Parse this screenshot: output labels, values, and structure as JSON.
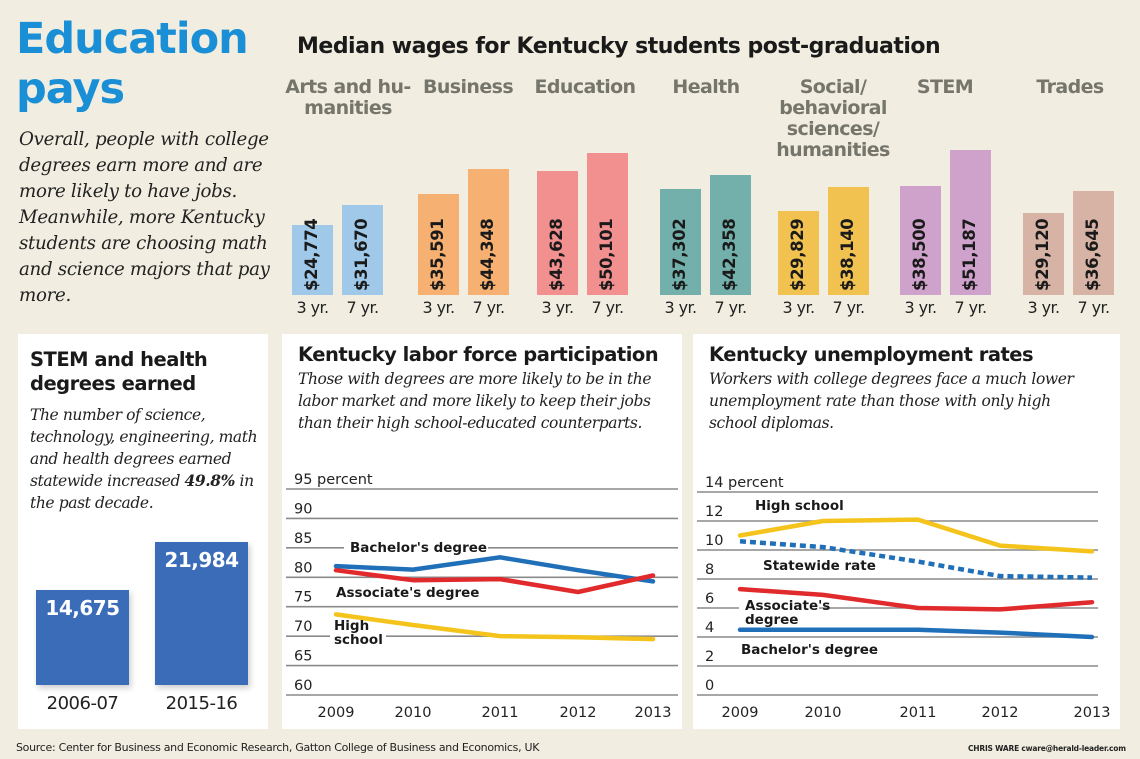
{
  "header": {
    "title_line1": "Education",
    "title_line2": "pays",
    "intro": "Overall, people with college degrees earn more and are more likely to have jobs. Meanwhile, more Kentucky students are choosing math and science majors that pay more."
  },
  "footer": {
    "source": "Source: Center for Business and Economic Research, Gatton College of Business and Economics, UK",
    "credit": "CHRIS WARE cware@herald-leader.com"
  },
  "chart_data": [
    {
      "id": "wages",
      "type": "bar",
      "title": "Median wages for Kentucky students post-graduation",
      "xlabel": "",
      "ylabel": "",
      "sublabels": [
        "3 yr.",
        "7 yr."
      ],
      "categories": [
        {
          "label_lines": [
            "Arts and hu-",
            "manities"
          ],
          "color": "#9fc8e9",
          "values": [
            24774,
            31670
          ],
          "value_labels": [
            "$24,774",
            "$31,670"
          ]
        },
        {
          "label_lines": [
            "Business"
          ],
          "color": "#f5b072",
          "values": [
            35591,
            44348
          ],
          "value_labels": [
            "$35,591",
            "$44,348"
          ]
        },
        {
          "label_lines": [
            "Education"
          ],
          "color": "#f2908f",
          "values": [
            43628,
            50101
          ],
          "value_labels": [
            "$43,628",
            "$50,101"
          ]
        },
        {
          "label_lines": [
            "Health"
          ],
          "color": "#73b0ab",
          "values": [
            37302,
            42358
          ],
          "value_labels": [
            "$37,302",
            "$42,358"
          ]
        },
        {
          "label_lines": [
            "Social/",
            "behavioral",
            "sciences/",
            "humanities"
          ],
          "color": "#f1c24f",
          "values": [
            29829,
            38140
          ],
          "value_labels": [
            "$29,829",
            "$38,140"
          ]
        },
        {
          "label_lines": [
            "STEM"
          ],
          "color": "#cfa2cc",
          "values": [
            38500,
            51187
          ],
          "value_labels": [
            "$38,500",
            "$51,187"
          ]
        },
        {
          "label_lines": [
            "Trades"
          ],
          "color": "#d7b3a5",
          "values": [
            29120,
            36645
          ],
          "value_labels": [
            "$29,120",
            "$36,645"
          ]
        }
      ],
      "ylim": [
        0,
        52000
      ],
      "grid": false
    },
    {
      "id": "stem_degrees",
      "type": "bar",
      "title": "STEM and health degrees earned",
      "description_pre": "The number of science, technology, engineering, math and health degrees earned statewide increased ",
      "description_bold": "49.8%",
      "description_post": " in the past decade.",
      "categories": [
        "2006-07",
        "2015-16"
      ],
      "values": [
        14675,
        21984
      ],
      "value_labels": [
        "14,675",
        "21,984"
      ],
      "color": "#3a6cb8",
      "ylim": [
        0,
        23000
      ],
      "grid": false
    },
    {
      "id": "labor",
      "type": "line",
      "title": "Kentucky labor force participation",
      "description": "Those with degrees are more likely to be in the labor market and more likely to keep their jobs than their high school-educated counterparts.",
      "x": [
        "2009",
        "2010",
        "2011",
        "2012",
        "2013"
      ],
      "ylim": [
        60,
        95
      ],
      "yticks": [
        95,
        90,
        85,
        80,
        75,
        70,
        65,
        60
      ],
      "ytick_labels": [
        "95 percent",
        "90",
        "85",
        "80",
        "75",
        "70",
        "65",
        "60"
      ],
      "grid": true,
      "series": [
        {
          "name": "Bachelor's degree",
          "color": "#1f6fb9",
          "dashed": false,
          "values": [
            81.9,
            81.3,
            83.4,
            81.2,
            79.3
          ]
        },
        {
          "name": "Associate's degree",
          "color": "#e02a2c",
          "dashed": false,
          "values": [
            81.2,
            79.5,
            79.7,
            77.5,
            80.3
          ]
        },
        {
          "name": "High school",
          "label_lines": [
            "High",
            "school"
          ],
          "color": "#f4c41c",
          "dashed": false,
          "values": [
            73.7,
            71.9,
            70.0,
            69.8,
            69.5
          ]
        }
      ]
    },
    {
      "id": "unemployment",
      "type": "line",
      "title": "Kentucky unemployment rates",
      "description": "Workers with college degrees face a much lower unemployment rate than those with only high school diplomas.",
      "x": [
        "2009",
        "2010",
        "2011",
        "2012",
        "2013"
      ],
      "ylim": [
        0,
        14
      ],
      "yticks": [
        14,
        12,
        10,
        8,
        6,
        4,
        2,
        0
      ],
      "ytick_labels": [
        "14 percent",
        "12",
        "10",
        "8",
        "6",
        "4",
        "2",
        "0"
      ],
      "grid": true,
      "series": [
        {
          "name": "High school",
          "color": "#f4c41c",
          "dashed": false,
          "values": [
            11.0,
            12.0,
            12.1,
            10.3,
            9.9
          ]
        },
        {
          "name": "Statewide rate",
          "color": "#1f6fb9",
          "dashed": true,
          "values": [
            10.6,
            10.2,
            9.2,
            8.2,
            8.1
          ]
        },
        {
          "name": "Associate's degree",
          "label_lines": [
            "Associate's",
            "degree"
          ],
          "color": "#e02a2c",
          "dashed": false,
          "values": [
            7.3,
            6.9,
            6.0,
            5.9,
            6.4
          ]
        },
        {
          "name": "Bachelor's degree",
          "color": "#1f6fb9",
          "dashed": false,
          "values": [
            4.5,
            4.5,
            4.5,
            4.3,
            4.0
          ]
        }
      ]
    }
  ]
}
